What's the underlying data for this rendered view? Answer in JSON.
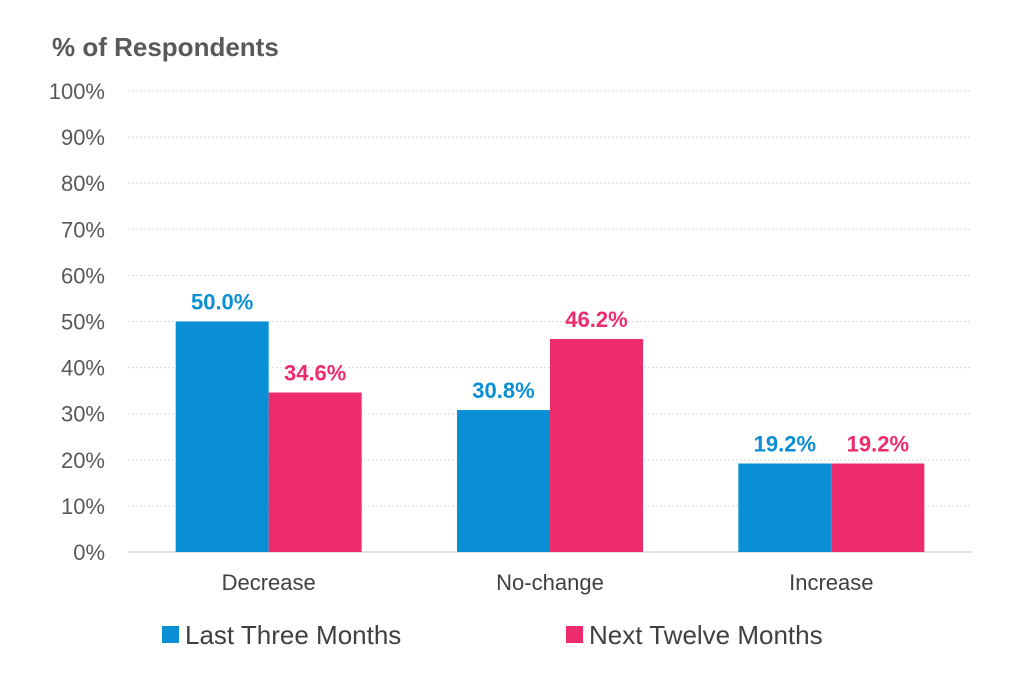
{
  "chart_data": {
    "type": "bar",
    "ylabel": "% of Respondents",
    "xlabel": "",
    "categories": [
      "Decrease",
      "No-change",
      "Increase"
    ],
    "series": [
      {
        "name": "Last Three Months",
        "color": "#0a8fd4",
        "values": [
          50.0,
          30.8,
          19.2
        ],
        "labels": [
          "50.0%",
          "30.8%",
          "19.2%"
        ]
      },
      {
        "name": "Next Twelve Months",
        "color": "#ee2b6d",
        "values": [
          34.6,
          46.2,
          19.2
        ],
        "labels": [
          "34.6%",
          "46.2%",
          "19.2%"
        ]
      }
    ],
    "ylim": [
      0,
      100
    ],
    "yticks": [
      "0%",
      "10%",
      "20%",
      "30%",
      "40%",
      "50%",
      "60%",
      "70%",
      "80%",
      "90%",
      "100%"
    ],
    "grid": true,
    "legend": "bottom"
  }
}
